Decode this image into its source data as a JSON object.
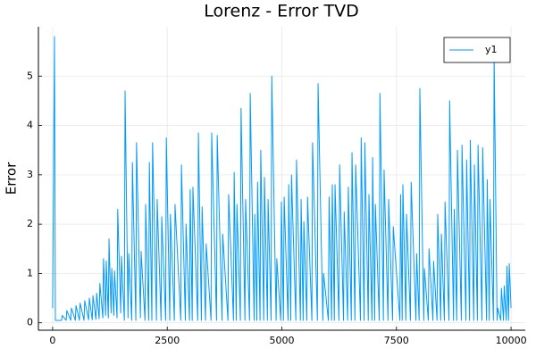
{
  "chart_data": {
    "type": "line",
    "title": "Lorenz - Error TVD",
    "y_label": "Error",
    "grid": true,
    "legend_position": "top-right",
    "xlim": [
      -310,
      10310
    ],
    "ylim": [
      -0.15,
      6.0
    ],
    "xticks": [
      0,
      2500,
      5000,
      7500,
      10000
    ],
    "yticks": [
      0,
      1,
      2,
      3,
      4,
      5
    ],
    "x": [
      0,
      40,
      60,
      195,
      210,
      295,
      310,
      395,
      410,
      495,
      510,
      585,
      600,
      685,
      700,
      785,
      800,
      865,
      880,
      945,
      960,
      1015,
      1030,
      1095,
      1110,
      1155,
      1170,
      1215,
      1230,
      1275,
      1290,
      1335,
      1350,
      1405,
      1420,
      1485,
      1500,
      1565,
      1580,
      1645,
      1660,
      1725,
      1740,
      1815,
      1830,
      1915,
      1930,
      2015,
      2030,
      2095,
      2110,
      2165,
      2180,
      2265,
      2280,
      2365,
      2380,
      2465,
      2480,
      2555,
      2570,
      2655,
      2670,
      2795,
      2810,
      2895,
      2910,
      2985,
      3000,
      3045,
      3060,
      3165,
      3180,
      3245,
      3260,
      3335,
      3350,
      3455,
      3470,
      3575,
      3590,
      3695,
      3710,
      3825,
      3840,
      3945,
      3960,
      4005,
      4020,
      4095,
      4110,
      4195,
      4210,
      4295,
      4310,
      4395,
      4410,
      4455,
      4470,
      4525,
      4540,
      4605,
      4620,
      4685,
      4700,
      4765,
      4780,
      4875,
      4890,
      4975,
      4990,
      5035,
      5050,
      5135,
      5150,
      5195,
      5210,
      5305,
      5320,
      5405,
      5420,
      5465,
      5480,
      5545,
      5560,
      5655,
      5670,
      5775,
      5790,
      5895,
      5910,
      6015,
      6030,
      6085,
      6100,
      6145,
      6160,
      6245,
      6260,
      6345,
      6360,
      6435,
      6450,
      6515,
      6530,
      6595,
      6610,
      6715,
      6730,
      6795,
      6810,
      6885,
      6900,
      6965,
      6980,
      7025,
      7040,
      7125,
      7140,
      7215,
      7230,
      7315,
      7330,
      7415,
      7430,
      7575,
      7590,
      7625,
      7640,
      7705,
      7720,
      7805,
      7820,
      7925,
      7940,
      7995,
      8010,
      8095,
      8110,
      8195,
      8210,
      8295,
      8310,
      8385,
      8400,
      8465,
      8480,
      8545,
      8560,
      8645,
      8660,
      8745,
      8760,
      8815,
      8830,
      8915,
      8930,
      9015,
      9030,
      9095,
      9110,
      9185,
      9200,
      9265,
      9280,
      9365,
      9380,
      9465,
      9480,
      9525,
      9540,
      9615,
      9630,
      9695,
      9710,
      9775,
      9790,
      9835,
      9850,
      9895,
      9910,
      9945,
      9960,
      10000
    ],
    "series": [
      {
        "name": "y1",
        "color": "#009af9",
        "values": [
          0.3,
          5.8,
          0.05,
          0.05,
          0.15,
          0.05,
          0.25,
          0.05,
          0.3,
          0.05,
          0.35,
          0.05,
          0.4,
          0.05,
          0.45,
          0.06,
          0.5,
          0.06,
          0.55,
          0.07,
          0.6,
          0.08,
          0.8,
          0.1,
          1.3,
          0.15,
          1.25,
          0.1,
          1.7,
          0.2,
          1.1,
          0.15,
          1.05,
          0.1,
          2.3,
          0.2,
          1.35,
          0.05,
          4.7,
          0.1,
          1.4,
          0.05,
          3.25,
          0.05,
          3.65,
          0.1,
          1.45,
          0.05,
          2.4,
          0.05,
          3.25,
          0.05,
          3.65,
          0.05,
          2.5,
          0.05,
          2.15,
          0.05,
          3.75,
          0.05,
          2.2,
          0.05,
          2.4,
          0.05,
          3.2,
          0.05,
          2.0,
          0.05,
          2.7,
          0.05,
          2.75,
          0.05,
          3.85,
          0.05,
          2.35,
          0.05,
          1.6,
          0.05,
          3.85,
          0.05,
          3.8,
          0.05,
          1.8,
          0.05,
          2.6,
          0.05,
          3.05,
          0.05,
          2.4,
          0.05,
          4.35,
          0.05,
          2.5,
          0.05,
          4.65,
          0.05,
          2.2,
          0.05,
          2.85,
          0.05,
          3.5,
          0.05,
          2.95,
          0.05,
          2.5,
          0.05,
          5.0,
          0.05,
          1.3,
          0.05,
          2.45,
          0.05,
          2.55,
          0.05,
          2.8,
          0.05,
          3.0,
          0.05,
          3.3,
          0.05,
          2.5,
          0.05,
          2.05,
          0.05,
          2.55,
          0.05,
          3.65,
          0.05,
          4.85,
          0.05,
          1.0,
          0.05,
          2.55,
          0.05,
          2.8,
          0.05,
          2.8,
          0.05,
          3.2,
          0.05,
          2.25,
          0.05,
          2.75,
          0.05,
          3.45,
          0.05,
          3.2,
          0.05,
          3.75,
          0.05,
          3.65,
          0.05,
          2.6,
          0.05,
          3.35,
          0.05,
          2.4,
          0.05,
          4.65,
          0.05,
          3.1,
          0.05,
          2.5,
          0.05,
          1.95,
          0.05,
          2.6,
          0.05,
          2.8,
          0.05,
          2.2,
          0.05,
          2.85,
          0.05,
          1.4,
          0.05,
          4.75,
          0.05,
          1.1,
          0.05,
          1.5,
          0.05,
          1.25,
          0.05,
          2.2,
          0.05,
          1.8,
          0.05,
          2.45,
          0.05,
          4.5,
          0.05,
          2.3,
          0.05,
          3.5,
          0.05,
          3.6,
          0.05,
          3.3,
          0.05,
          3.7,
          0.05,
          3.2,
          0.05,
          3.6,
          0.05,
          3.55,
          0.05,
          2.9,
          0.05,
          2.5,
          0.05,
          5.45,
          0.05,
          0.3,
          0.05,
          0.7,
          0.05,
          0.75,
          0.05,
          1.15,
          0.05,
          1.2,
          0.3
        ]
      }
    ]
  }
}
